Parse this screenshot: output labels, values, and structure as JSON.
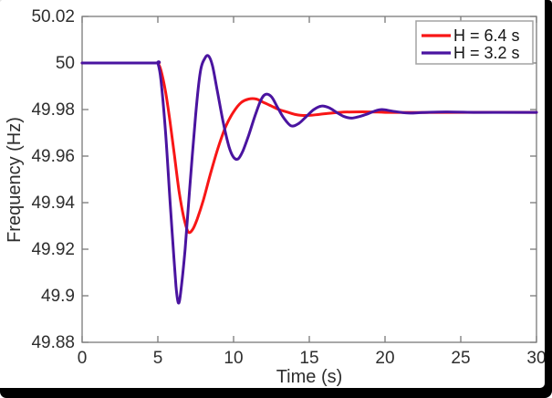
{
  "figure": {
    "background": "#ffffff",
    "frame_color": "#000000"
  },
  "chart_data": {
    "type": "line",
    "title": "",
    "xlabel": "Time (s)",
    "ylabel": "Frequency (Hz)",
    "xlim": [
      0,
      30
    ],
    "ylim": [
      49.88,
      50.02
    ],
    "xticks": [
      0,
      5,
      10,
      15,
      20,
      25,
      30
    ],
    "xtick_labels": [
      "0",
      "5",
      "10",
      "15",
      "20",
      "25",
      "30"
    ],
    "yticks": [
      49.88,
      49.9,
      49.92,
      49.94,
      49.96,
      49.98,
      50,
      50.02
    ],
    "ytick_labels": [
      "49.88",
      "49.9",
      "49.92",
      "49.94",
      "49.96",
      "49.98",
      "50",
      "50.02"
    ],
    "grid": false,
    "axis_color": "#7a7a7a",
    "text_color": "#2e2e2e",
    "legend": {
      "position": "top-right",
      "border_color": "#a3a3a3",
      "entries": [
        {
          "label": "H = 6.4 s",
          "color": "#f81616"
        },
        {
          "label": "H = 3.2 s",
          "color": "#4a14a0"
        }
      ]
    },
    "series": [
      {
        "name": "H = 6.4 s",
        "color": "#f81616",
        "x": [
          0,
          2.5,
          4.9,
          5.0,
          5.2,
          5.5,
          5.8,
          6.1,
          6.4,
          6.7,
          7.0,
          7.3,
          7.6,
          8.0,
          8.5,
          9.0,
          9.5,
          10.0,
          10.5,
          11.0,
          11.5,
          12.0,
          12.5,
          13.0,
          13.5,
          14.0,
          14.5,
          15.0,
          15.5,
          16.0,
          17.0,
          18.0,
          19.0,
          20.0,
          22.0,
          25.0,
          30.0
        ],
        "y": [
          50.0,
          50.0,
          50.0,
          50.0,
          49.997,
          49.988,
          49.975,
          49.96,
          49.945,
          49.934,
          49.9275,
          49.9285,
          49.933,
          49.941,
          49.953,
          49.964,
          49.973,
          49.979,
          49.983,
          49.9845,
          49.9845,
          49.983,
          49.9815,
          49.98,
          49.979,
          49.978,
          49.9775,
          49.9775,
          49.9778,
          49.9782,
          49.9788,
          49.979,
          49.979,
          49.9788,
          49.9787,
          49.9788,
          49.9788
        ]
      },
      {
        "name": "H = 3.2 s",
        "color": "#4a14a0",
        "x": [
          0,
          2.5,
          4.9,
          5.0,
          5.2,
          5.5,
          5.8,
          6.0,
          6.2,
          6.35,
          6.5,
          6.8,
          7.1,
          7.5,
          7.8,
          8.1,
          8.35,
          8.6,
          8.9,
          9.3,
          9.7,
          10.0,
          10.3,
          10.6,
          11.0,
          11.4,
          11.8,
          12.1,
          12.5,
          12.9,
          13.3,
          13.8,
          14.3,
          14.8,
          15.3,
          15.8,
          16.3,
          16.8,
          17.3,
          17.8,
          18.3,
          18.8,
          19.3,
          19.8,
          20.5,
          21.5,
          22.5,
          24.0,
          26.0,
          28.0,
          30.0
        ],
        "y": [
          50.0,
          50.0,
          50.0,
          50.0,
          49.993,
          49.971,
          49.941,
          49.922,
          49.904,
          49.897,
          49.901,
          49.92,
          49.946,
          49.978,
          49.996,
          50.002,
          50.003,
          49.999,
          49.989,
          49.975,
          49.964,
          49.9595,
          49.9588,
          49.962,
          49.969,
          49.977,
          49.984,
          49.9865,
          49.9855,
          49.981,
          49.9765,
          49.973,
          49.974,
          49.977,
          49.98,
          49.9815,
          49.9808,
          49.9788,
          49.977,
          49.9763,
          49.977,
          49.978,
          49.9793,
          49.98,
          49.9793,
          49.9785,
          49.9787,
          49.979,
          49.9788,
          49.9788,
          49.9788
        ]
      }
    ]
  }
}
